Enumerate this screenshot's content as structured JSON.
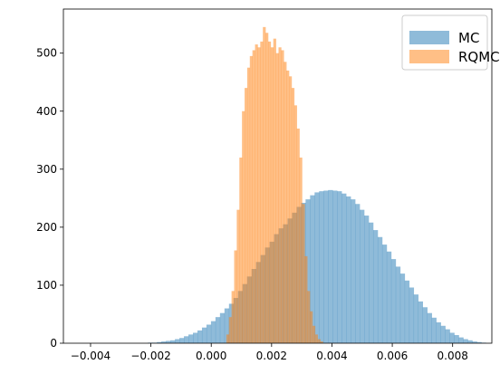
{
  "chart_data": {
    "type": "bar",
    "title": "",
    "xlabel": "",
    "ylabel": "",
    "xlim": [
      -0.0049,
      0.0093
    ],
    "ylim": [
      0,
      576
    ],
    "xticks": [
      -0.004,
      -0.002,
      0.0,
      0.002,
      0.004,
      0.006,
      0.008
    ],
    "xtick_labels": [
      "−0.004",
      "−0.002",
      "0.000",
      "0.002",
      "0.004",
      "0.006",
      "0.008"
    ],
    "yticks": [
      0,
      100,
      200,
      300,
      400,
      500
    ],
    "ytick_labels": [
      "0",
      "100",
      "200",
      "300",
      "400",
      "500"
    ],
    "grid": false,
    "legend_position": "top-right",
    "series": [
      {
        "name": "MC",
        "color": "#1f77b4",
        "alpha": 0.5,
        "bin_edges": [
          -0.0021,
          0.0091
        ],
        "values": [
          1,
          1,
          2,
          3,
          4,
          5,
          7,
          9,
          12,
          15,
          18,
          22,
          27,
          32,
          38,
          45,
          52,
          60,
          68,
          78,
          90,
          102,
          115,
          128,
          140,
          152,
          165,
          175,
          188,
          198,
          205,
          215,
          225,
          235,
          242,
          248,
          255,
          260,
          262,
          263,
          264,
          263,
          262,
          258,
          253,
          248,
          240,
          230,
          220,
          208,
          195,
          183,
          170,
          158,
          145,
          132,
          120,
          108,
          96,
          84,
          72,
          62,
          52,
          44,
          36,
          30,
          24,
          18,
          14,
          10,
          7,
          5,
          3,
          2,
          1
        ]
      },
      {
        "name": "RQMC",
        "color": "#ff7f0e",
        "alpha": 0.5,
        "bin_edges": [
          0.0005,
          0.0037
        ],
        "values": [
          15,
          45,
          90,
          160,
          230,
          320,
          400,
          440,
          475,
          495,
          505,
          515,
          510,
          520,
          545,
          535,
          520,
          510,
          525,
          500,
          510,
          505,
          485,
          470,
          460,
          440,
          410,
          370,
          320,
          240,
          150,
          90,
          55,
          30,
          15,
          7,
          3
        ]
      }
    ]
  }
}
